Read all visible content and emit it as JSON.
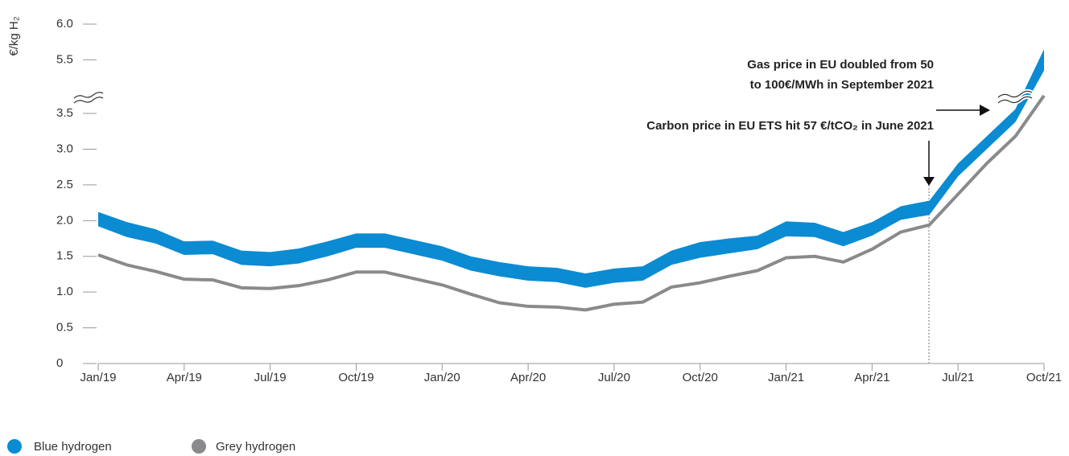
{
  "chart_data": {
    "type": "band-line",
    "y_label": "€/kg H₂",
    "categories": [
      "Jan/19",
      null,
      null,
      "Apr/19",
      null,
      null,
      "Jul/19",
      null,
      null,
      "Oct/19",
      null,
      null,
      "Jan/20",
      null,
      null,
      "Apr/20",
      null,
      null,
      "Jul/20",
      null,
      null,
      "Oct/20",
      null,
      null,
      "Jan/21",
      null,
      null,
      "Apr/21",
      null,
      null,
      "Jul/21",
      null,
      null,
      "Oct/21"
    ],
    "series": [
      {
        "name": "Blue hydrogen",
        "color": "#0a8bd2",
        "low": [
          1.92,
          1.77,
          1.68,
          1.52,
          1.53,
          1.38,
          1.36,
          1.4,
          1.5,
          1.62,
          1.62,
          1.53,
          1.44,
          1.3,
          1.22,
          1.16,
          1.14,
          1.06,
          1.13,
          1.16,
          1.38,
          1.48,
          1.54,
          1.6,
          1.78,
          1.77,
          1.64,
          1.79,
          2.01,
          2.08,
          2.62,
          3.0,
          3.38,
          5.35
        ],
        "high": [
          2.12,
          1.98,
          1.88,
          1.71,
          1.72,
          1.58,
          1.56,
          1.61,
          1.71,
          1.82,
          1.82,
          1.73,
          1.64,
          1.5,
          1.42,
          1.36,
          1.34,
          1.26,
          1.33,
          1.36,
          1.58,
          1.7,
          1.75,
          1.79,
          1.99,
          1.97,
          1.84,
          1.98,
          2.2,
          2.28,
          2.8,
          3.18,
          3.56,
          5.65
        ]
      },
      {
        "name": "Grey hydrogen",
        "color": "#8a8a8c",
        "values": [
          1.52,
          1.38,
          1.29,
          1.18,
          1.17,
          1.06,
          1.05,
          1.09,
          1.17,
          1.28,
          1.28,
          1.19,
          1.1,
          0.97,
          0.85,
          0.8,
          0.79,
          0.75,
          0.83,
          0.86,
          1.07,
          1.13,
          1.22,
          1.3,
          1.48,
          1.5,
          1.42,
          1.6,
          1.84,
          1.94,
          2.37,
          2.8,
          3.18,
          5.0
        ]
      }
    ],
    "ylim": [
      0,
      6.0
    ],
    "ybreak": [
      3.7,
      4.95
    ],
    "yticks": [
      0,
      0.5,
      {
        "value": 1,
        "label": "1.0"
      },
      1.5,
      {
        "value": 2,
        "label": "2.0"
      },
      2.5,
      {
        "value": 3,
        "label": "3.0"
      },
      3.5,
      5.5,
      {
        "value": 6,
        "label": "6.0"
      }
    ],
    "annotations": [
      {
        "text": "Carbon price in EU ETS hit 57 €/tCO₂ in June 2021"
      },
      {
        "lines": [
          "Gas price in EU doubled from 50",
          "to 100€/MWh in September 2021"
        ]
      }
    ]
  }
}
